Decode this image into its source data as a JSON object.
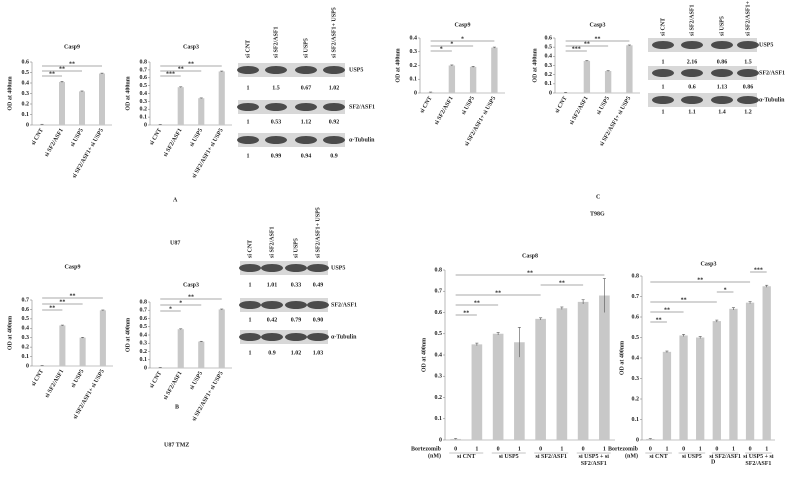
{
  "panels": [
    {
      "letter": "A",
      "cell_line": "U87"
    },
    {
      "letter": "C",
      "cell_line": "T98G"
    },
    {
      "letter": "B",
      "cell_line": "U87 TMZ"
    },
    {
      "letter": "D"
    }
  ],
  "chart_data": [
    {
      "type": "bar",
      "title": "Casp9",
      "ylabel": "OD at 400nm",
      "categories": [
        "si CNT",
        "si SF2/ASF1",
        "si USP5",
        "si SF2/ASF1+ si USP5"
      ],
      "values": [
        0.005,
        0.41,
        0.32,
        0.49
      ],
      "errors": [
        0.002,
        0.005,
        0.004,
        0.004
      ],
      "color": "#c8c8c8",
      "ylim": [
        0,
        0.6
      ],
      "yticks": [
        0,
        0.1,
        0.2,
        0.3,
        0.4,
        0.5,
        0.6
      ],
      "annotations": [
        "**",
        "**",
        "**"
      ]
    },
    {
      "type": "bar",
      "title": "Casp3",
      "ylabel": "OD at 400nm",
      "categories": [
        "si CNT",
        "si SF2/ASF1",
        "si USP5",
        "si SF2/ASF1+ si USP5"
      ],
      "values": [
        0.005,
        0.48,
        0.34,
        0.68
      ],
      "errors": [
        0.002,
        0.005,
        0.004,
        0.005
      ],
      "color": "#c8c8c8",
      "ylim": [
        0,
        0.8
      ],
      "yticks": [
        0,
        0.1,
        0.2,
        0.3,
        0.4,
        0.5,
        0.6,
        0.7,
        0.8
      ],
      "annotations": [
        "**",
        "**",
        "***"
      ]
    },
    {
      "type": "bar",
      "title": "Casp9",
      "ylabel": "OD at 400nm",
      "categories": [
        "si CNT",
        "si SF2/ASF1",
        "si USP5",
        "si SF2/ASF1+ si USP5"
      ],
      "values": [
        0.005,
        0.2,
        0.19,
        0.33
      ],
      "errors": [
        0.002,
        0.004,
        0.004,
        0.004
      ],
      "color": "#c8c8c8",
      "ylim": [
        0,
        0.4
      ],
      "yticks": [
        0,
        0.1,
        0.2,
        0.3,
        0.4
      ],
      "annotations": [
        "*",
        "*",
        "*"
      ]
    },
    {
      "type": "bar",
      "title": "Casp3",
      "ylabel": "OD at 400nm",
      "categories": [
        "si CNT",
        "si SF2/ASF1",
        "si USP5",
        "si SF2/ASF1+ si USP5"
      ],
      "values": [
        0.005,
        0.35,
        0.24,
        0.52
      ],
      "errors": [
        0.002,
        0.004,
        0.004,
        0.004
      ],
      "color": "#c8c8c8",
      "ylim": [
        0,
        0.6
      ],
      "yticks": [
        0,
        0.1,
        0.2,
        0.3,
        0.4,
        0.5,
        0.6
      ],
      "annotations": [
        "**",
        "**",
        "***"
      ]
    },
    {
      "type": "bar",
      "title": "Casp9",
      "ylabel": "OD at 400nm",
      "categories": [
        "si CNT",
        "si SF2/ASF1",
        "si USP5",
        "si SF2/ASF1+ si USP5"
      ],
      "values": [
        0.003,
        0.43,
        0.3,
        0.59
      ],
      "errors": [
        0.002,
        0.004,
        0.004,
        0.004
      ],
      "color": "#c8c8c8",
      "ylim": [
        0,
        0.7
      ],
      "yticks": [
        0,
        0.1,
        0.2,
        0.3,
        0.4,
        0.5,
        0.6,
        0.7
      ],
      "annotations": [
        "**",
        "**",
        "**"
      ]
    },
    {
      "type": "bar",
      "title": "Casp3",
      "ylabel": "OD at 400nm",
      "categories": [
        "si CNT",
        "si SF2/ASF1",
        "si USP5",
        "si SF2/ASF1+ si USP5"
      ],
      "values": [
        0.005,
        0.47,
        0.32,
        0.71
      ],
      "errors": [
        0.002,
        0.005,
        0.004,
        0.005
      ],
      "color": "#c8c8c8",
      "ylim": [
        0,
        0.8
      ],
      "yticks": [
        0,
        0.1,
        0.2,
        0.3,
        0.4,
        0.5,
        0.6,
        0.7,
        0.8
      ],
      "annotations": [
        "**",
        "*",
        "*"
      ]
    },
    {
      "type": "grouped",
      "title": "Casp8",
      "ylabel": "OD at 400nm",
      "xlabel": [
        "Bortezomib",
        "(nM)"
      ],
      "groups": [
        "si CNT",
        "si USP5",
        "si SF2/ASF1",
        "si USP5 + si SF2/ASF1"
      ],
      "categories": [
        "0",
        "1",
        "0",
        "1",
        "0",
        "1",
        "0",
        "1"
      ],
      "values": [
        0.005,
        0.45,
        0.5,
        0.46,
        0.57,
        0.62,
        0.65,
        0.68
      ],
      "errors": [
        0.002,
        0.006,
        0.006,
        0.07,
        0.005,
        0.006,
        0.01,
        0.08
      ],
      "color": "#c8c8c8",
      "ylim": [
        0,
        0.8
      ],
      "yticks": [
        0,
        0.1,
        0.2,
        0.3,
        0.4,
        0.5,
        0.6,
        0.7,
        0.8
      ],
      "annotations": [
        "**",
        "**",
        "**",
        "**",
        "**"
      ]
    },
    {
      "type": "grouped",
      "title": "Casp3",
      "ylabel": "OD at 400nm",
      "xlabel": [
        "Bortezomib",
        "(nM)"
      ],
      "groups": [
        "si CNT",
        "si USP5",
        "si SF2/ASF1",
        "si USP5 + si SF2/ASF1"
      ],
      "categories": [
        "0",
        "1",
        "0",
        "1",
        "0",
        "1",
        "0",
        "1"
      ],
      "values": [
        0.005,
        0.43,
        0.51,
        0.5,
        0.58,
        0.64,
        0.67,
        0.75
      ],
      "errors": [
        0.002,
        0.004,
        0.005,
        0.005,
        0.005,
        0.006,
        0.005,
        0.005
      ],
      "color": "#c8c8c8",
      "ylim": [
        0,
        0.8
      ],
      "yticks": [
        0,
        0.1,
        0.2,
        0.3,
        0.4,
        0.5,
        0.6,
        0.7,
        0.8
      ],
      "annotations": [
        "***",
        "**",
        "*",
        "**",
        "**",
        "**"
      ]
    }
  ],
  "blots": [
    {
      "lanes": [
        "si CNT",
        "si SF2/ASF1",
        "si USP5",
        "si SF2/ASF1+ USP5"
      ],
      "rows": [
        {
          "label": "USP5",
          "values": [
            "1",
            "1.5",
            "0.67",
            "1.02"
          ]
        },
        {
          "label": "SF2/ASF1",
          "values": [
            "1",
            "0.53",
            "1.12",
            "0.92"
          ]
        },
        {
          "label": "α-Tubulin",
          "values": [
            "1",
            "0.99",
            "0.94",
            "0.9"
          ]
        }
      ]
    },
    {
      "lanes": [
        "si CNT",
        "si SF2/ASF1",
        "si USP5",
        "si SF2/ASF1+ USP5"
      ],
      "rows": [
        {
          "label": "USP5",
          "values": [
            "1",
            "2.16",
            "0.86",
            "1.5"
          ]
        },
        {
          "label": "SF2/ASF1",
          "values": [
            "1",
            "0.6",
            "1.13",
            "0.86"
          ]
        },
        {
          "label": "α-Tubulin",
          "values": [
            "1",
            "1.1",
            "1.4",
            "1.2"
          ]
        }
      ]
    },
    {
      "lanes": [
        "si CNT",
        "si SF2/ASF1",
        "si USP5",
        "si SF2/ASF1+ USP5"
      ],
      "rows": [
        {
          "label": "USP5",
          "values": [
            "1",
            "1.01",
            "0.33",
            "0.49"
          ]
        },
        {
          "label": "SF2/ASF1",
          "values": [
            "1",
            "0.42",
            "0.79",
            "0.90"
          ]
        },
        {
          "label": "α-Tubulin",
          "values": [
            "1",
            "0.9",
            "1.02",
            "1.03"
          ]
        }
      ]
    }
  ]
}
